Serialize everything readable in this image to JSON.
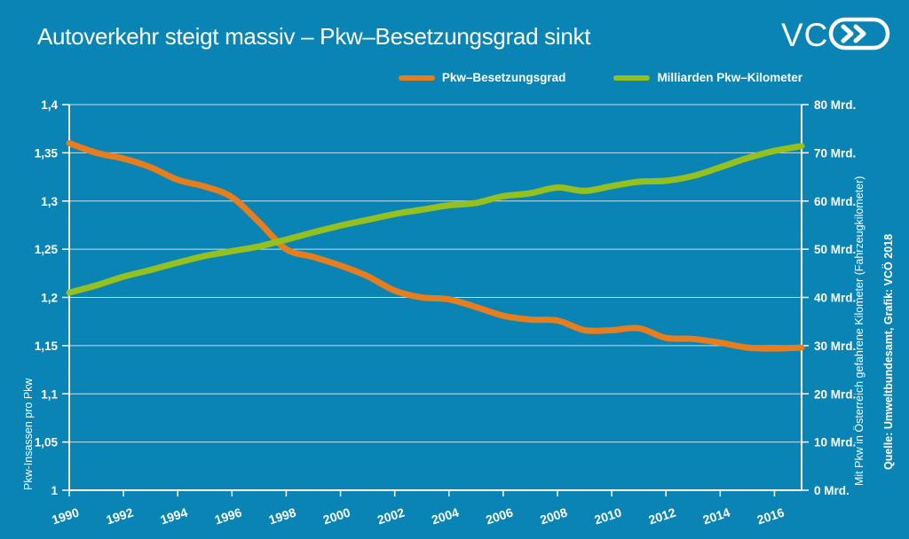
{
  "header": {
    "title": "Autoverkehr steigt massiv – Pkw–Besetzungsgrad sinkt",
    "logo_text": "VC"
  },
  "colors": {
    "background": "#0a84b4",
    "orange": "#e87d1e",
    "green": "#95c11f",
    "grid": "rgba(255,255,255,0.75)",
    "axis": "#ffffff",
    "text": "#ffffff"
  },
  "legend": [
    {
      "label": "Pkw–Besetzungsgrad",
      "color": "#e87d1e"
    },
    {
      "label": "Milliarden Pkw–Kilometer",
      "color": "#95c11f"
    }
  ],
  "chart_data": {
    "type": "line",
    "title": "Autoverkehr steigt massiv – Pkw–Besetzungsgrad sinkt",
    "grid": true,
    "legend_position": "top",
    "x": [
      1990,
      1991,
      1992,
      1993,
      1994,
      1995,
      1996,
      1997,
      1998,
      1999,
      2000,
      2001,
      2002,
      2003,
      2004,
      2005,
      2006,
      2007,
      2008,
      2009,
      2010,
      2011,
      2012,
      2013,
      2014,
      2015,
      2016,
      2017
    ],
    "series": [
      {
        "name": "Pkw–Besetzungsgrad",
        "axis": "left",
        "color": "#e87d1e",
        "values": [
          1.36,
          1.35,
          1.344,
          1.335,
          1.322,
          1.315,
          1.304,
          1.278,
          1.25,
          1.242,
          1.233,
          1.222,
          1.207,
          1.2,
          1.198,
          1.19,
          1.181,
          1.177,
          1.176,
          1.166,
          1.166,
          1.168,
          1.158,
          1.157,
          1.153,
          1.148,
          1.147,
          1.148
        ]
      },
      {
        "name": "Milliarden Pkw–Kilometer",
        "axis": "right",
        "color": "#95c11f",
        "values": [
          41.0,
          42.5,
          44.3,
          45.7,
          47.2,
          48.6,
          49.6,
          50.6,
          52.0,
          53.5,
          54.9,
          56.1,
          57.3,
          58.2,
          59.1,
          59.6,
          61.0,
          61.6,
          62.8,
          62.1,
          63.1,
          64.0,
          64.2,
          65.2,
          67.0,
          68.9,
          70.4,
          71.4
        ]
      }
    ],
    "left_axis": {
      "label": "Pkw-Insassen pro Pkw",
      "min": 1.0,
      "max": 1.4,
      "ticks": [
        "1,4",
        "1,35",
        "1,3",
        "1,25",
        "1,2",
        "1,15",
        "1,1",
        "1,05",
        "1"
      ]
    },
    "right_axis": {
      "label": "Mit Pkw in Österreich gefahrene Kilometer (Fahrzeugkilometer)",
      "min": 0,
      "max": 80,
      "ticks": [
        "80 Mrd.",
        "70 Mrd.",
        "60 Mrd.",
        "50 Mrd.",
        "40 Mrd.",
        "30 Mrd.",
        "20 Mrd.",
        "10 Mrd.",
        "0 Mrd."
      ]
    },
    "x_axis": {
      "tick_years": [
        1990,
        1992,
        1994,
        1996,
        1998,
        2000,
        2002,
        2004,
        2006,
        2008,
        2010,
        2012,
        2014,
        2016
      ]
    },
    "source": "Quelle: Umweltbundesamt, Grafik: VCÖ 2018"
  }
}
